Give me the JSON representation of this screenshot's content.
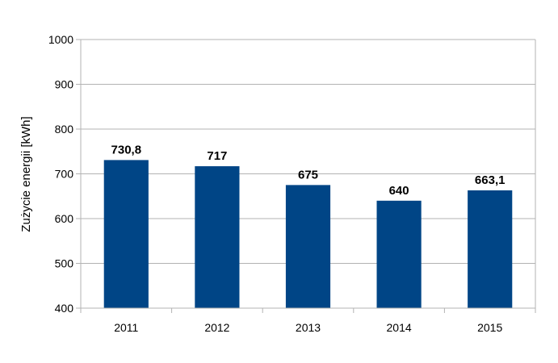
{
  "chart_data": {
    "type": "bar",
    "title": "",
    "xlabel": "",
    "ylabel": "Zużycie energii [kWh]",
    "categories": [
      "2011",
      "2012",
      "2013",
      "2014",
      "2015"
    ],
    "values": [
      730.8,
      717,
      675,
      640,
      663.1
    ],
    "value_labels": [
      "730,8",
      "717",
      "675",
      "640",
      "663,1"
    ],
    "ylim": [
      400,
      1000
    ],
    "yticks": [
      400,
      500,
      600,
      700,
      800,
      900,
      1000
    ],
    "ytick_labels": [
      "400",
      "500",
      "600",
      "700",
      "800",
      "900",
      "1000"
    ],
    "grid": true,
    "legend": "none",
    "colors": {
      "bar": "#004586",
      "grid": "#b3b3b3",
      "axis": "#b3b3b3",
      "text": "#000000"
    }
  }
}
